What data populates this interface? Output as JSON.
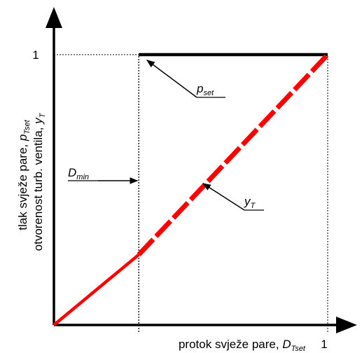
{
  "chart_data": {
    "type": "line",
    "x_axis": {
      "label_main": "protok svježe pare, ",
      "label_var": "D",
      "label_sub": "Tset",
      "range": [
        0,
        1
      ],
      "ticks": [
        "1"
      ]
    },
    "y_axis": {
      "label_line1_main": "tlak svježe pare, ",
      "label_line1_var": "p",
      "label_line1_sub": "Tset",
      "label_line2_main": "otvorenost turb. ventila, ",
      "label_line2_var": "y",
      "label_line2_sub": "T",
      "range": [
        0,
        1
      ],
      "ticks": [
        "1"
      ]
    },
    "d_min_x": 0.31,
    "series": [
      {
        "name_var": "p",
        "name_sub": "set",
        "color": "#000000",
        "style": "solid",
        "points": [
          [
            0.31,
            1.0
          ],
          [
            1.0,
            1.0
          ]
        ]
      },
      {
        "name_var": "y",
        "name_sub": "T",
        "color": "#ff0000",
        "style": "solid-then-dashed",
        "points": [
          [
            0.0,
            0.0
          ],
          [
            0.31,
            0.26
          ],
          [
            1.0,
            1.0
          ]
        ]
      }
    ],
    "annotations": [
      {
        "var": "D",
        "sub": "min",
        "target": "d_min_line",
        "at": [
          0.31,
          0.52
        ]
      },
      {
        "var": "p",
        "sub": "set",
        "target": "p_set_line",
        "at": [
          0.44,
          0.99
        ]
      },
      {
        "var": "y",
        "sub": "T",
        "target": "y_t_line",
        "at": [
          0.69,
          0.54
        ]
      }
    ],
    "reference_lines": [
      "x = 0.31",
      "y = 1 (dotted)",
      "x = 1 (dotted)"
    ],
    "grid": false
  }
}
